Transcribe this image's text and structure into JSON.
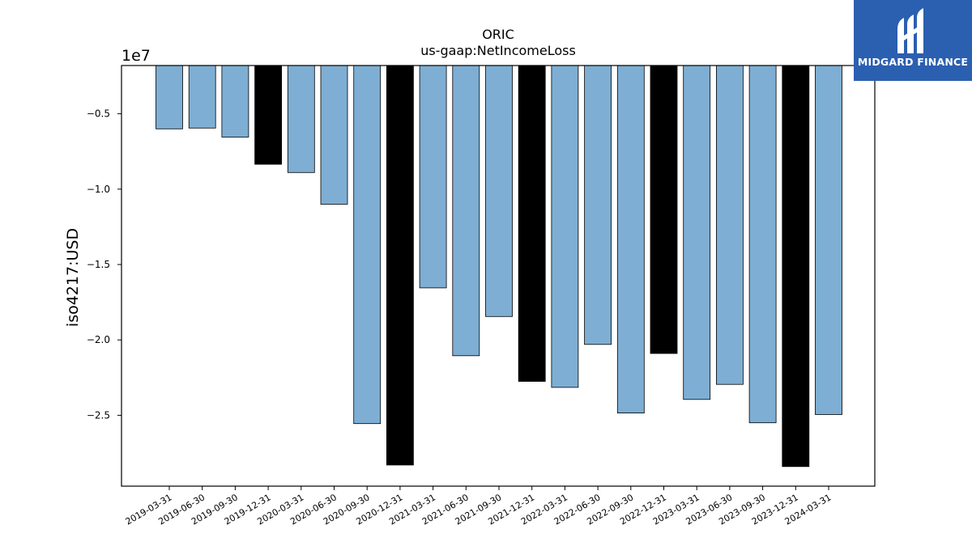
{
  "chart_data": {
    "type": "bar",
    "title": "ORIC",
    "subtitle": "us-gaap:NetIncomeLoss",
    "xlabel": "",
    "ylabel": "iso4217:USD",
    "scale_label": "1e7",
    "ylim": [
      -29700000,
      -1800000
    ],
    "yticks": [
      -5000000,
      -10000000,
      -15000000,
      -20000000,
      -25000000
    ],
    "ytick_labels": [
      "−0.5",
      "−1.0",
      "−1.5",
      "−2.0",
      "−2.5"
    ],
    "grid": false,
    "categories": [
      "2019-03-31",
      "2019-06-30",
      "2019-09-30",
      "2019-12-31",
      "2020-03-31",
      "2020-06-30",
      "2020-09-30",
      "2020-12-31",
      "2021-03-31",
      "2021-06-30",
      "2021-09-30",
      "2021-12-31",
      "2022-03-31",
      "2022-06-30",
      "2022-09-30",
      "2022-12-31",
      "2023-03-31",
      "2023-06-30",
      "2023-09-30",
      "2023-12-31",
      "2024-03-31"
    ],
    "values": [
      -6000000,
      -5950000,
      -6550000,
      -8350000,
      -8900000,
      -11000000,
      -25550000,
      -28300000,
      -16550000,
      -21050000,
      -18450000,
      -22750000,
      -23150000,
      -20300000,
      -24850000,
      -20900000,
      -23950000,
      -22950000,
      -25500000,
      -28400000,
      -24950000
    ],
    "bar_colors": [
      "#7eaed3",
      "#7eaed3",
      "#7eaed3",
      "#000000",
      "#7eaed3",
      "#7eaed3",
      "#7eaed3",
      "#000000",
      "#7eaed3",
      "#7eaed3",
      "#7eaed3",
      "#000000",
      "#7eaed3",
      "#7eaed3",
      "#7eaed3",
      "#000000",
      "#7eaed3",
      "#7eaed3",
      "#7eaed3",
      "#000000",
      "#7eaed3"
    ]
  },
  "logo": {
    "text": "MIDGARD FINANCE",
    "color": "#2b5fb0"
  }
}
